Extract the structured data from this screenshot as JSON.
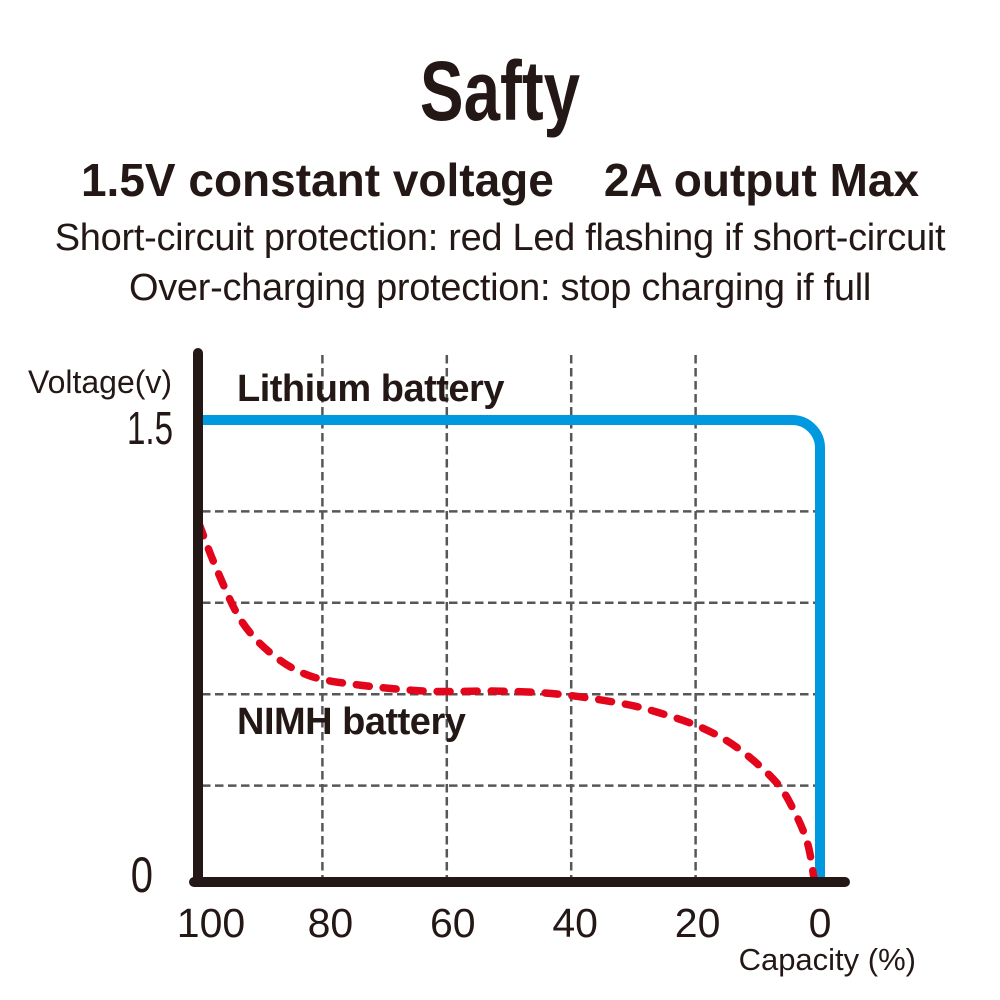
{
  "header": {
    "title": "Safty",
    "subtitle_left": "1.5V constant voltage",
    "subtitle_right": "2A output Max",
    "protection_line1": "Short-circuit protection: red Led flashing if short-circuit",
    "protection_line2": "Over-charging protection: stop charging if full"
  },
  "chart_data": {
    "type": "line",
    "xlabel": "Capacity (%)",
    "ylabel": "Voltage(v)",
    "x_axis": {
      "reversed": true,
      "ticks": [
        100,
        80,
        60,
        40,
        20,
        0
      ],
      "min": 0,
      "max": 100
    },
    "y_axis": {
      "min": 0,
      "max": 1.5,
      "labeled_ticks": [
        "1.5",
        "0"
      ],
      "gridlines": [
        1.2,
        0.9,
        0.6,
        0.3
      ]
    },
    "grid": "dashed",
    "colors": {
      "lithium": "#0099e0",
      "nimh": "#e3051b",
      "axis": "#231815",
      "grid": "#575757"
    },
    "series": [
      {
        "name": "Lithium battery",
        "style": "solid",
        "color": "#0099e0",
        "points": [
          [
            100,
            1.5
          ],
          [
            2,
            1.5
          ],
          [
            0,
            0
          ]
        ]
      },
      {
        "name": "NIMH battery",
        "style": "dashed",
        "color": "#e3051b",
        "points": [
          [
            100,
            1.16
          ],
          [
            97,
            1.01
          ],
          [
            93,
            0.84
          ],
          [
            88,
            0.73
          ],
          [
            82,
            0.66
          ],
          [
            74,
            0.63
          ],
          [
            63,
            0.61
          ],
          [
            51,
            0.61
          ],
          [
            42,
            0.6
          ],
          [
            32,
            0.57
          ],
          [
            26,
            0.54
          ],
          [
            19,
            0.49
          ],
          [
            13,
            0.42
          ],
          [
            7,
            0.31
          ],
          [
            4,
            0.21
          ],
          [
            2,
            0.11
          ],
          [
            1,
            0.0
          ]
        ]
      }
    ]
  }
}
